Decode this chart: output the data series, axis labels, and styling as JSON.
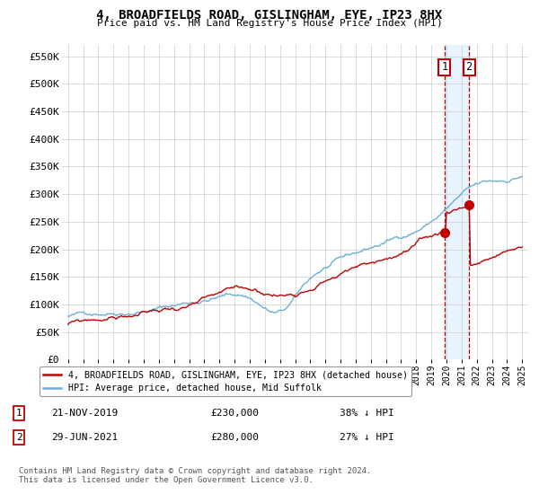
{
  "title": "4, BROADFIELDS ROAD, GISLINGHAM, EYE, IP23 8HX",
  "subtitle": "Price paid vs. HM Land Registry's House Price Index (HPI)",
  "ylim": [
    0,
    570000
  ],
  "yticks": [
    0,
    50000,
    100000,
    150000,
    200000,
    250000,
    300000,
    350000,
    400000,
    450000,
    500000,
    550000
  ],
  "xlabel_start": 1995,
  "xlabel_end": 2025,
  "hpi_color": "#6baed6",
  "price_color": "#c00000",
  "sale1_date": "21-NOV-2019",
  "sale1_price": 230000,
  "sale1_pct": "38% ↓ HPI",
  "sale2_date": "29-JUN-2021",
  "sale2_price": 280000,
  "sale2_pct": "27% ↓ HPI",
  "legend_house": "4, BROADFIELDS ROAD, GISLINGHAM, EYE, IP23 8HX (detached house)",
  "legend_hpi": "HPI: Average price, detached house, Mid Suffolk",
  "footer": "Contains HM Land Registry data © Crown copyright and database right 2024.\nThis data is licensed under the Open Government Licence v3.0.",
  "background_color": "#ffffff",
  "grid_color": "#cccccc",
  "sale1_x": 2019.88,
  "sale2_x": 2021.49,
  "shade_color": "#ddeeff"
}
